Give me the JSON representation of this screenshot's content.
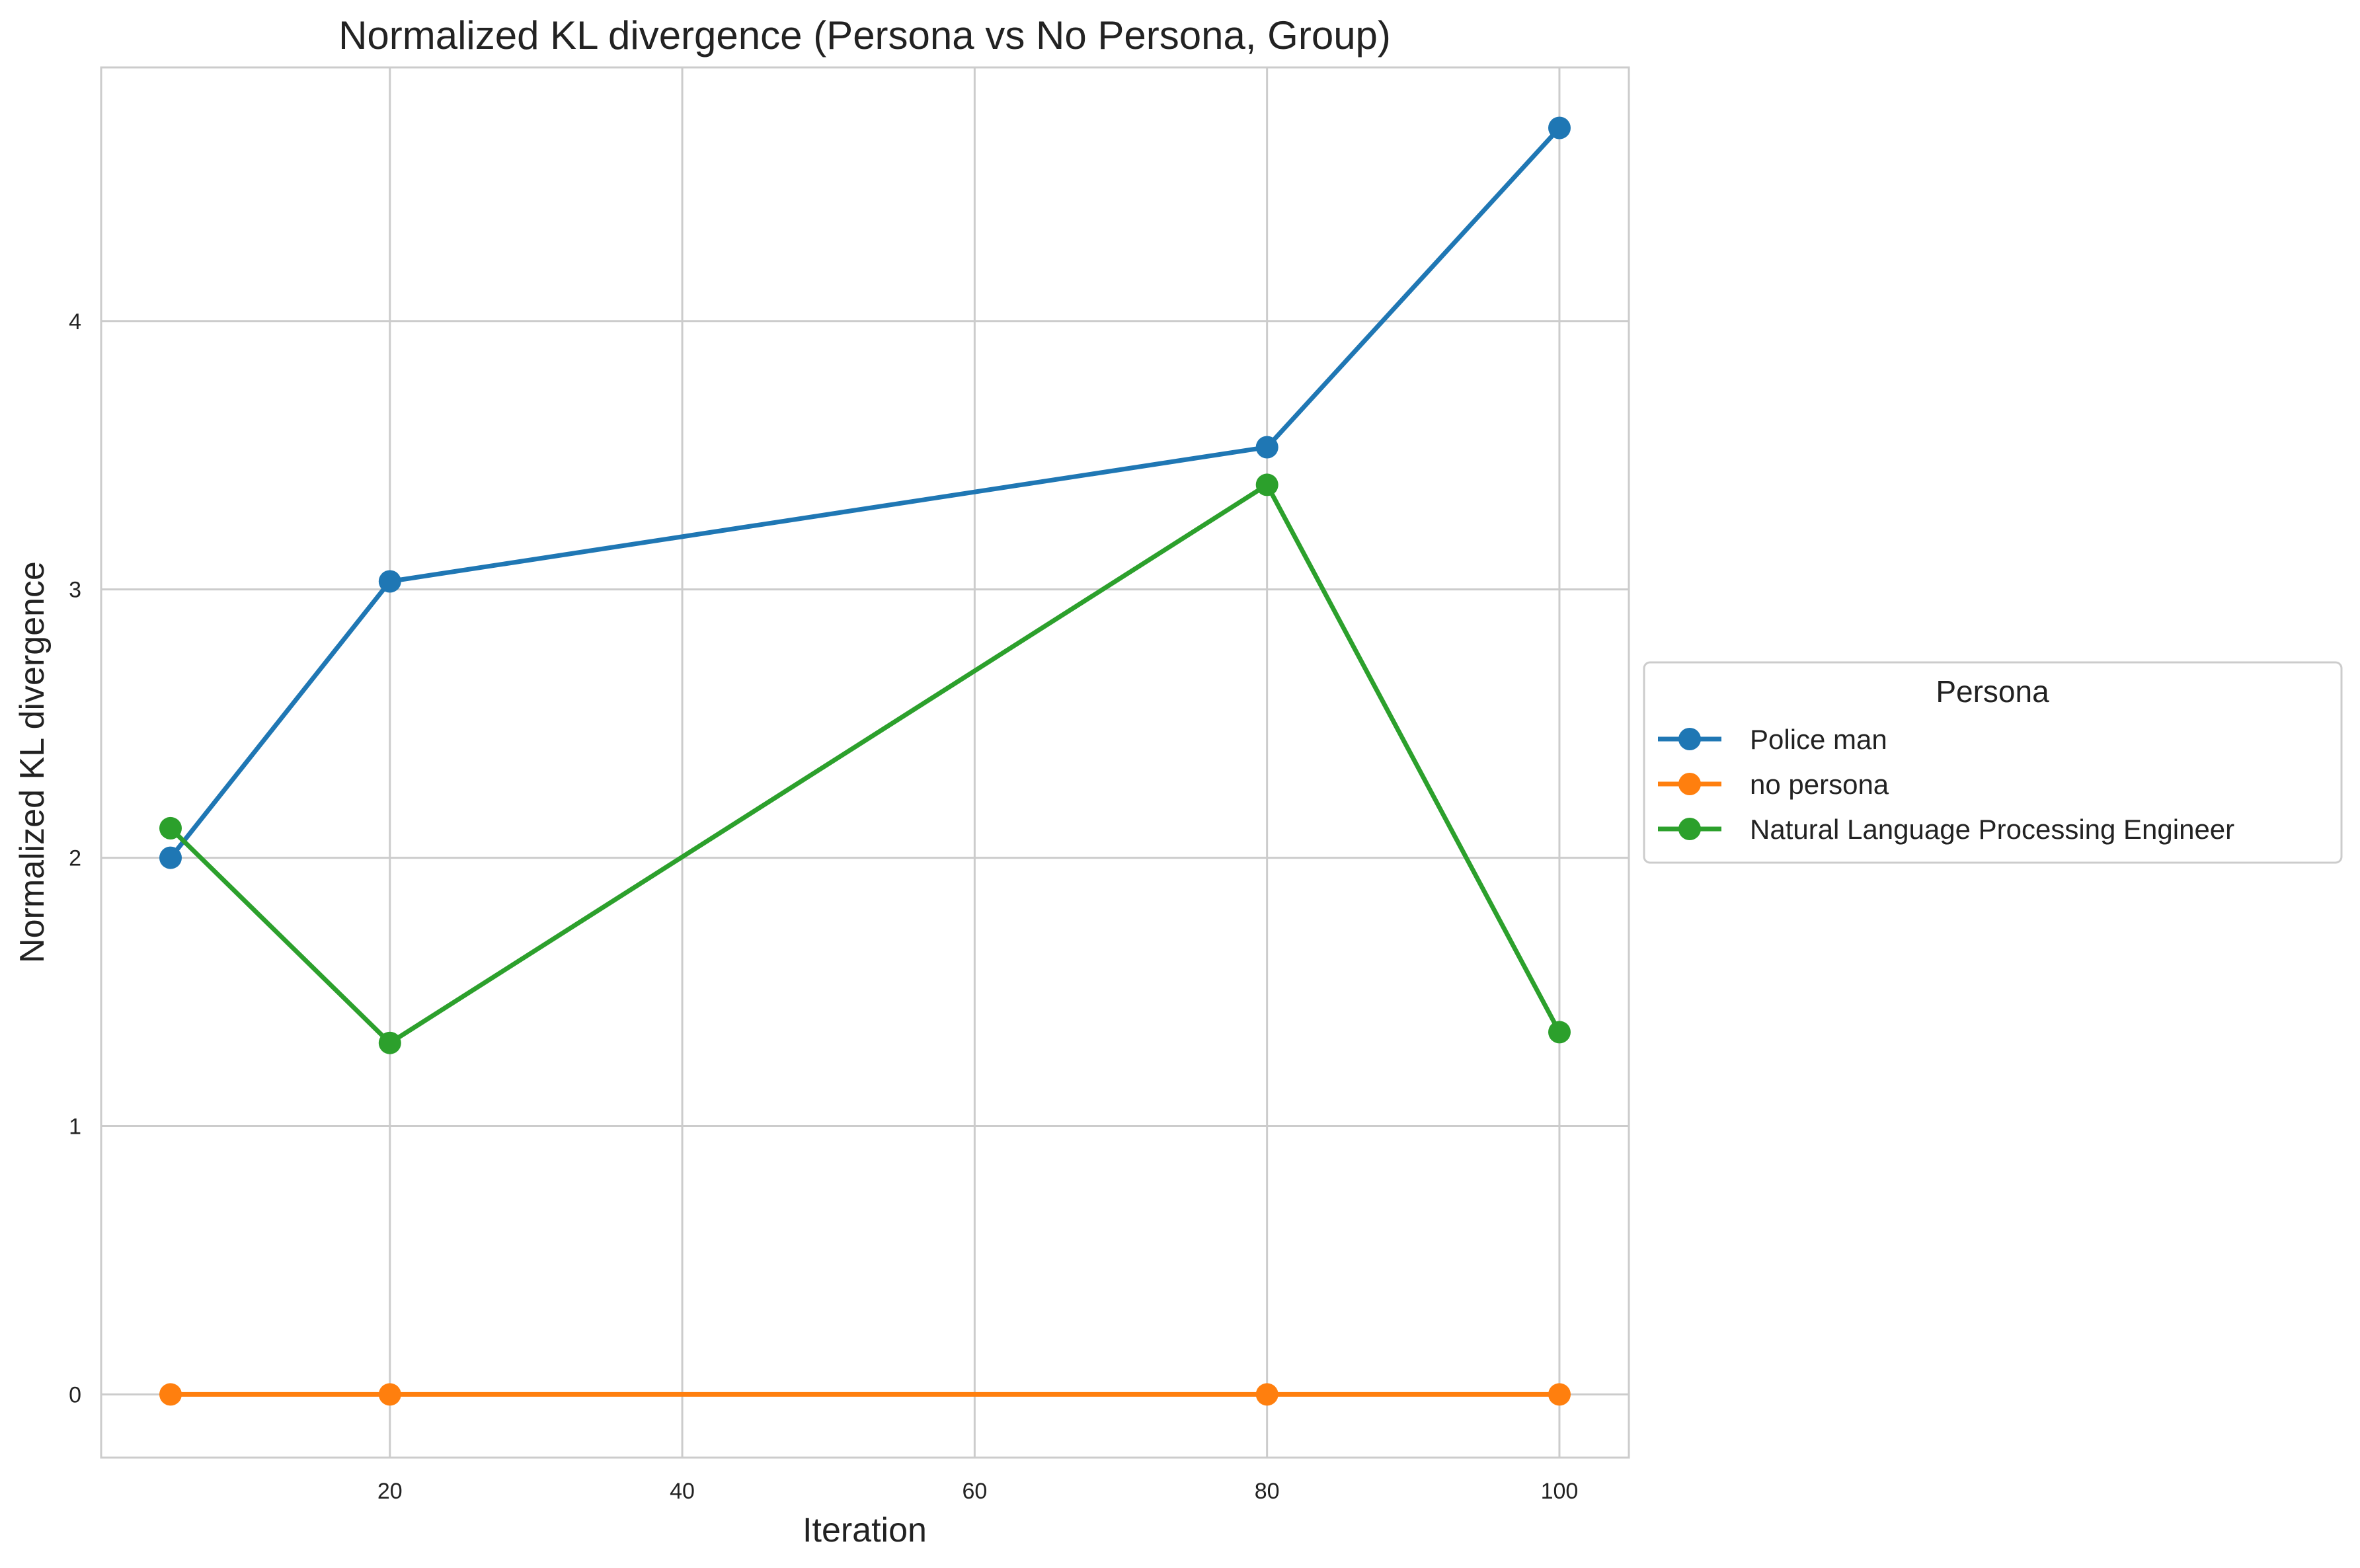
{
  "chart_data": {
    "type": "line",
    "title": "Normalized KL divergence (Persona vs No Persona, Group)",
    "xlabel": "Iteration",
    "ylabel": "Normalized KL divergence",
    "xlim": [
      0.25,
      104.75
    ],
    "ylim": [
      -0.2355,
      4.9454
    ],
    "xticks": [
      20,
      40,
      60,
      80,
      100
    ],
    "yticks": [
      0,
      1,
      2,
      3,
      4
    ],
    "grid": true,
    "legend": {
      "title": "Persona",
      "placement": "outside-right"
    },
    "x": [
      5,
      20,
      80,
      100
    ],
    "series": [
      {
        "name": "Police man",
        "color": "#1f77b4",
        "values": [
          2.0,
          3.03,
          3.53,
          4.72
        ]
      },
      {
        "name": "no persona",
        "color": "#ff7f0e",
        "values": [
          0,
          0,
          0,
          0
        ]
      },
      {
        "name": "Natural Language Processing Engineer",
        "color": "#2ca02c",
        "values": [
          2.11,
          1.31,
          3.39,
          1.35
        ]
      }
    ]
  }
}
